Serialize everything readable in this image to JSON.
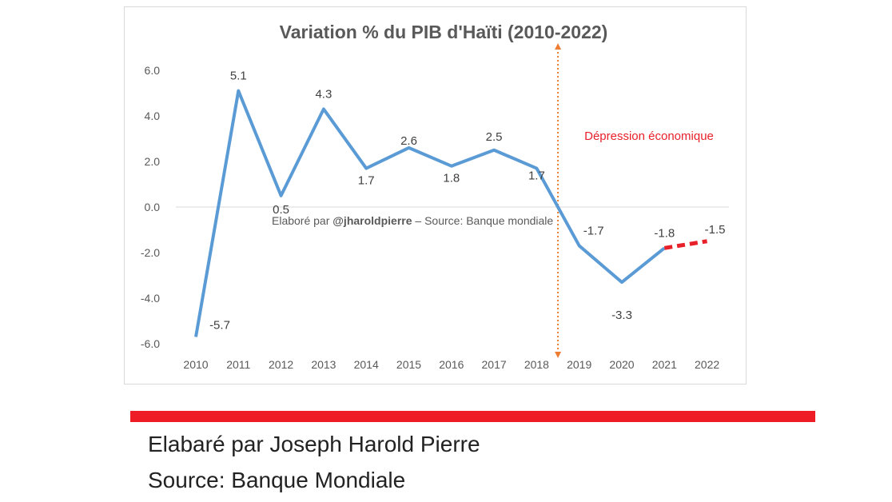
{
  "chart_data": {
    "type": "line",
    "title": "Variation % du PIB d'Haïti (2010-2022)",
    "categories": [
      "2010",
      "2011",
      "2012",
      "2013",
      "2014",
      "2015",
      "2016",
      "2017",
      "2018",
      "2019",
      "2020",
      "2021",
      "2022"
    ],
    "values": [
      -5.7,
      5.1,
      0.5,
      4.3,
      1.7,
      2.6,
      1.8,
      2.5,
      1.7,
      -1.7,
      -3.3,
      -1.8,
      -1.5
    ],
    "data_labels": [
      "-5.7",
      "5.1",
      "0.5",
      "4.3",
      "1.7",
      "2.6",
      "1.8",
      "2.5",
      "1.7",
      "-1.7",
      "-3.3",
      "-1.8",
      "-1.5"
    ],
    "projected_from_index": 11,
    "ylim": [
      -6,
      6
    ],
    "yticks": [
      "6.0",
      "4.0",
      "2.0",
      "0.0",
      "-2.0",
      "-4.0",
      "-6.0"
    ],
    "ytick_values": [
      6,
      4,
      2,
      0,
      -2,
      -4,
      -6
    ],
    "annotation": "Dépression économique",
    "annotation_x_between": [
      "2018",
      "2019"
    ],
    "watermark_prefix": "Elaboré par ",
    "watermark_handle": "@jharoldpierre",
    "watermark_suffix": " – Source: Banque mondiale",
    "colors": {
      "line": "#5b9bd5",
      "projection": "#e8202a",
      "annotation": "#e8202a",
      "arrow": "#ed7d31"
    }
  },
  "footer": {
    "line1": "Elabaré par Joseph Harold Pierre",
    "line2": "Source: Banque Mondiale"
  }
}
